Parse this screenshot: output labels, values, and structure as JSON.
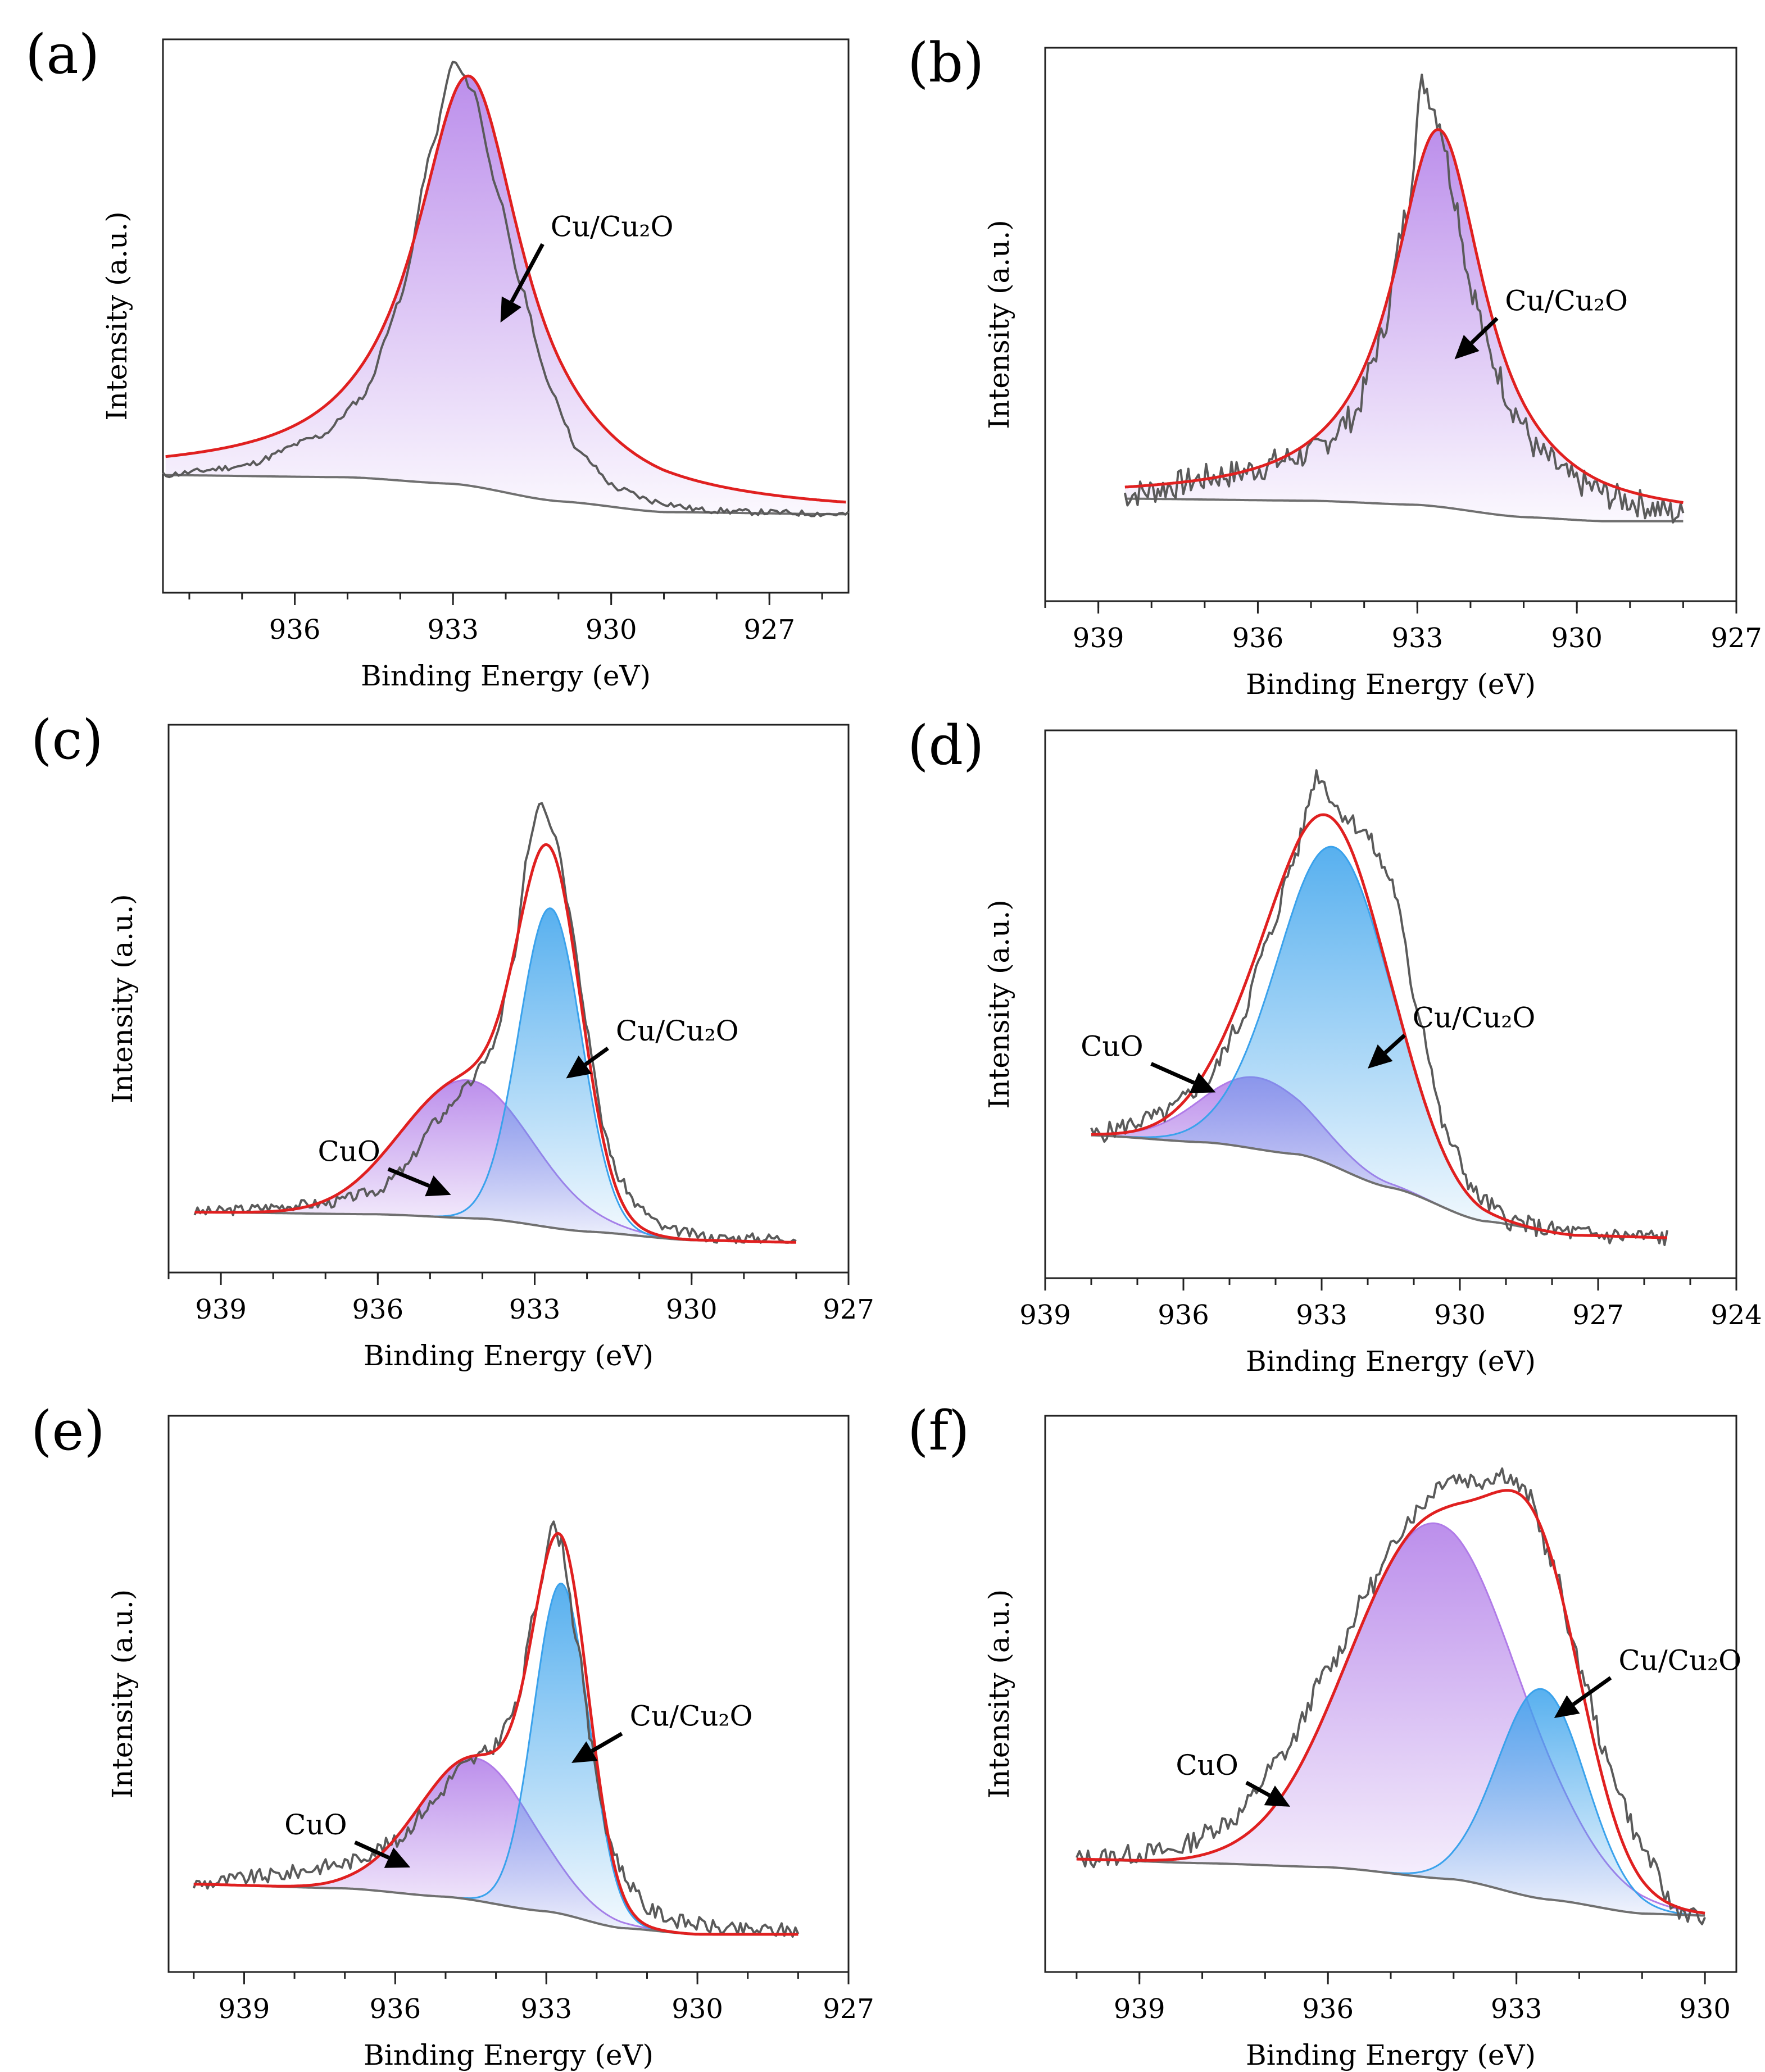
{
  "figure": {
    "colors": {
      "frame": "#222222",
      "raw": "#5a5a5a",
      "fit": "#e02020",
      "baseline": "#707070",
      "purple_peak": "#b07be8",
      "blue_peak": "#3aa2ec"
    }
  },
  "chart_data": [
    {
      "panel": "(a)",
      "type": "line",
      "xlabel": "Binding Energy (eV)",
      "ylabel": "Intensity (a.u.)",
      "xlim": [
        938.5,
        925.5
      ],
      "ylim": [
        -0.22,
        1.05
      ],
      "xticks": [
        "936",
        "933",
        "930",
        "927"
      ],
      "xtick_values": [
        936,
        933,
        930,
        927
      ],
      "minor_ticks": true,
      "baseline": {
        "x": [
          938.5,
          935,
          933,
          931,
          929,
          925.5
        ],
        "y": [
          0.05,
          0.045,
          0.03,
          -0.01,
          -0.035,
          -0.04
        ]
      },
      "peaks": [
        {
          "name": "Cu/Cu₂O",
          "color": "purple",
          "center": 932.7,
          "height": 0.94,
          "width": 1.25,
          "shape": "lorentz"
        }
      ],
      "raw": {
        "x": [
          938.5,
          937,
          935.5,
          934.7,
          934,
          933.4,
          933,
          932.6,
          932.2,
          931.7,
          931.2,
          930.6,
          929.9,
          929.2,
          928.3,
          927.3,
          925.5
        ],
        "y": [
          0.05,
          0.07,
          0.14,
          0.23,
          0.45,
          0.8,
          1.0,
          0.93,
          0.72,
          0.48,
          0.26,
          0.1,
          0.02,
          -0.01,
          -0.03,
          -0.035,
          -0.04
        ]
      },
      "noise": 0.007,
      "noise_seed": 11,
      "annotations": [
        {
          "text": "Cu/Cu₂O",
          "arrow_from": [
            931.3,
            0.58
          ],
          "arrow_to": [
            932.1,
            0.4
          ]
        }
      ]
    },
    {
      "panel": "(b)",
      "type": "line",
      "xlabel": "Binding Energy (eV)",
      "ylabel": "Intensity (a.u.)",
      "xlim": [
        940,
        927
      ],
      "ylim": [
        -0.25,
        1.1
      ],
      "xticks": [
        "939",
        "936",
        "933",
        "930",
        "927"
      ],
      "xtick_values": [
        939,
        936,
        933,
        930,
        927
      ],
      "minor_ticks": true,
      "baseline": {
        "x": [
          938.5,
          935,
          933,
          931,
          929.5,
          928
        ],
        "y": [
          0.0,
          -0.005,
          -0.015,
          -0.045,
          -0.055,
          -0.055
        ]
      },
      "peaks": [
        {
          "name": "Cu/Cu₂O",
          "color": "purple",
          "center": 932.6,
          "height": 0.92,
          "width": 1.05,
          "shape": "lorentz"
        }
      ],
      "raw": {
        "x": [
          938.5,
          936.5,
          935,
          934.2,
          933.7,
          933.2,
          932.9,
          932.6,
          932.3,
          932,
          931.6,
          931.2,
          930.7,
          930,
          929.2,
          928
        ],
        "y": [
          0.01,
          0.06,
          0.11,
          0.2,
          0.38,
          0.7,
          1.02,
          0.93,
          0.74,
          0.52,
          0.34,
          0.22,
          0.11,
          0.04,
          0.0,
          -0.04
        ]
      },
      "noise": 0.035,
      "noise_seed": 7,
      "annotations": [
        {
          "text": "Cu/Cu₂O",
          "arrow_from": [
            931.5,
            0.44
          ],
          "arrow_to": [
            932.3,
            0.34
          ]
        }
      ]
    },
    {
      "panel": "(c)",
      "type": "line",
      "xlabel": "Binding Energy (eV)",
      "ylabel": "Intensity (a.u.)",
      "xlim": [
        940,
        927
      ],
      "ylim": [
        -0.12,
        1.15
      ],
      "xticks": [
        "939",
        "936",
        "933",
        "930",
        "927"
      ],
      "xtick_values": [
        939,
        936,
        933,
        930,
        927
      ],
      "minor_ticks": true,
      "baseline": {
        "x": [
          939.5,
          936,
          934,
          932,
          930,
          928
        ],
        "y": [
          0.02,
          0.015,
          0.005,
          -0.025,
          -0.045,
          -0.05
        ]
      },
      "peaks": [
        {
          "name": "CuO",
          "color": "purple",
          "center": 934.3,
          "height": 0.32,
          "width": 1.25,
          "shape": "gauss"
        },
        {
          "name": "Cu/Cu₂O",
          "color": "blue",
          "center": 932.7,
          "height": 0.74,
          "width": 0.6,
          "shape": "gauss"
        }
      ],
      "raw": {
        "x": [
          939.5,
          937,
          936,
          935.5,
          934.9,
          934.3,
          933.8,
          933.4,
          933.1,
          932.9,
          932.6,
          932.3,
          932,
          931.7,
          931.4,
          931,
          930.5,
          929.5,
          928
        ],
        "y": [
          0.02,
          0.04,
          0.07,
          0.12,
          0.23,
          0.31,
          0.4,
          0.6,
          0.88,
          0.98,
          0.9,
          0.7,
          0.45,
          0.22,
          0.1,
          0.03,
          -0.02,
          -0.04,
          -0.04
        ]
      },
      "noise": 0.012,
      "noise_seed": 3,
      "annotations": [
        {
          "text": "Cu/Cu₂O",
          "arrow_from": [
            931.6,
            0.4
          ],
          "arrow_to": [
            932.4,
            0.33
          ]
        },
        {
          "text": "CuO",
          "arrow_from": [
            935.8,
            0.12
          ],
          "arrow_to": [
            934.6,
            0.06
          ]
        }
      ]
    },
    {
      "panel": "(d)",
      "type": "line",
      "xlabel": "Binding Energy (eV)",
      "ylabel": "Intensity (a.u.)",
      "xlim": [
        939,
        924
      ],
      "ylim": [
        -0.1,
        1.05
      ],
      "xticks": [
        "939",
        "936",
        "933",
        "930",
        "927",
        "924"
      ],
      "xtick_values": [
        939,
        936,
        933,
        930,
        927,
        924
      ],
      "minor_ticks": true,
      "baseline": {
        "x": [
          938,
          935.5,
          933.5,
          931.5,
          929.5,
          927.5,
          925.5
        ],
        "y": [
          0.2,
          0.185,
          0.16,
          0.09,
          0.02,
          -0.01,
          -0.015
        ]
      },
      "peaks": [
        {
          "name": "CuO",
          "color": "purple",
          "center": 934.4,
          "height": 0.15,
          "width": 1.2,
          "shape": "gauss"
        },
        {
          "name": "Cu/Cu₂O",
          "color": "blue",
          "center": 932.7,
          "height": 0.67,
          "width": 1.25,
          "shape": "gauss"
        }
      ],
      "raw": {
        "x": [
          938,
          936.5,
          935.5,
          934.8,
          934.2,
          933.6,
          933.1,
          932.6,
          932.1,
          931.5,
          930.9,
          930.3,
          929.6,
          928.9,
          928,
          927,
          925.5
        ],
        "y": [
          0.2,
          0.24,
          0.31,
          0.43,
          0.6,
          0.78,
          0.96,
          0.88,
          0.84,
          0.74,
          0.46,
          0.2,
          0.07,
          0.02,
          0.0,
          -0.01,
          -0.015
        ]
      },
      "noise": 0.02,
      "noise_seed": 5,
      "annotations": [
        {
          "text": "Cu/Cu₂O",
          "arrow_from": [
            931.2,
            0.41
          ],
          "arrow_to": [
            932.0,
            0.34
          ]
        },
        {
          "text": "CuO",
          "arrow_from": [
            936.7,
            0.35
          ],
          "arrow_to": [
            935.3,
            0.29
          ]
        }
      ]
    },
    {
      "panel": "(e)",
      "type": "line",
      "xlabel": "Binding Energy (eV)",
      "ylabel": "Intensity (a.u.)",
      "xlim": [
        940.5,
        927
      ],
      "ylim": [
        -0.18,
        1.15
      ],
      "xticks": [
        "939",
        "936",
        "933",
        "930",
        "927"
      ],
      "xtick_values": [
        939,
        936,
        933,
        930,
        927
      ],
      "minor_ticks": true,
      "baseline": {
        "x": [
          940,
          937,
          935,
          933,
          931.5,
          930,
          928
        ],
        "y": [
          0.03,
          0.02,
          0.0,
          -0.035,
          -0.075,
          -0.09,
          -0.09
        ]
      },
      "peaks": [
        {
          "name": "CuO",
          "color": "purple",
          "center": 934.4,
          "height": 0.34,
          "width": 1.15,
          "shape": "gauss"
        },
        {
          "name": "Cu/Cu₂O",
          "color": "blue",
          "center": 932.7,
          "height": 0.79,
          "width": 0.55,
          "shape": "gauss"
        }
      ],
      "raw": {
        "x": [
          940,
          938.5,
          937,
          936,
          935.3,
          934.7,
          934.1,
          933.6,
          933.2,
          932.9,
          932.7,
          932.4,
          932.1,
          931.8,
          931.4,
          931,
          930.3,
          929.3,
          928
        ],
        "y": [
          0.03,
          0.05,
          0.08,
          0.13,
          0.22,
          0.31,
          0.35,
          0.45,
          0.7,
          0.89,
          0.85,
          0.62,
          0.36,
          0.15,
          0.04,
          -0.03,
          -0.06,
          -0.08,
          -0.08
        ]
      },
      "noise": 0.018,
      "noise_seed": 9,
      "annotations": [
        {
          "text": "Cu/Cu₂O",
          "arrow_from": [
            931.5,
            0.39
          ],
          "arrow_to": [
            932.5,
            0.32
          ]
        },
        {
          "text": "CuO",
          "arrow_from": [
            936.8,
            0.13
          ],
          "arrow_to": [
            935.7,
            0.07
          ]
        }
      ]
    },
    {
      "panel": "(f)",
      "type": "line",
      "xlabel": "Binding Energy (eV)",
      "ylabel": "Intensity (a.u.)",
      "xlim": [
        940.5,
        929.5
      ],
      "ylim": [
        -0.28,
        1.1
      ],
      "xticks": [
        "939",
        "936",
        "933",
        "930"
      ],
      "xtick_values": [
        939,
        936,
        933,
        930
      ],
      "minor_ticks": true,
      "baseline": {
        "x": [
          940,
          938,
          936,
          934,
          932.5,
          931,
          930
        ],
        "y": [
          0.0,
          -0.01,
          -0.02,
          -0.05,
          -0.1,
          -0.135,
          -0.14
        ]
      },
      "peaks": [
        {
          "name": "CuO",
          "color": "purple",
          "center": 934.3,
          "height": 0.88,
          "width": 1.35,
          "shape": "gauss"
        },
        {
          "name": "Cu/Cu₂O",
          "color": "blue",
          "center": 932.6,
          "height": 0.52,
          "width": 0.7,
          "shape": "gauss"
        }
      ],
      "raw": {
        "x": [
          940,
          938.5,
          937.5,
          936.7,
          936,
          935.3,
          934.7,
          934.1,
          933.6,
          933.2,
          932.8,
          932.4,
          932,
          931.5,
          931,
          930.5,
          930
        ],
        "y": [
          0.0,
          0.02,
          0.1,
          0.26,
          0.47,
          0.68,
          0.85,
          0.95,
          0.94,
          0.96,
          0.9,
          0.72,
          0.48,
          0.22,
          0.03,
          -0.12,
          -0.15
        ]
      },
      "noise": 0.025,
      "noise_seed": 13,
      "annotations": [
        {
          "text": "Cu/Cu₂O",
          "arrow_from": [
            931.5,
            0.45
          ],
          "arrow_to": [
            932.4,
            0.35
          ]
        },
        {
          "text": "CuO",
          "arrow_from": [
            937.3,
            0.19
          ],
          "arrow_to": [
            936.6,
            0.13
          ]
        }
      ]
    }
  ]
}
